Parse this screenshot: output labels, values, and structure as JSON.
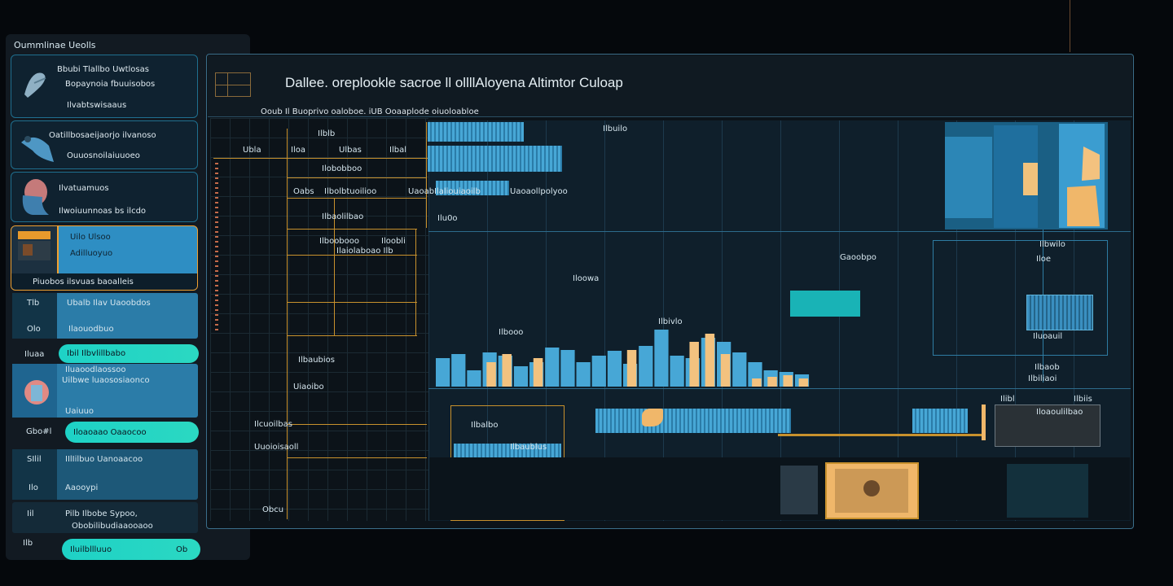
{
  "sidebar": {
    "title": "Oummlinae Ueolls",
    "cards": [
      {
        "line1": "Bbubi Tlallbo Uwtlosas",
        "line2": "Bopaynoia fbuuisobos",
        "line3": "Ilvabtswisaaus"
      },
      {
        "line1": "Oatillbosaeijaorjo ilvanoso",
        "line2": "Ouuosnoilaiuuoeo"
      },
      {
        "line1": "Ilvatuamuos",
        "line2": "Ilwoiuunnoas bs ilcdo"
      },
      {
        "line1": "Uilo Ulsoo",
        "line2": "Adilluoyuo",
        "footer": "Piuobos ilsvuas baoalleis"
      }
    ],
    "rows": [
      {
        "tag": "Tlb",
        "label": "Ubalb Ilav Uaoobdos"
      },
      {
        "tag": "Olo",
        "label": "Ilaouodbuo"
      },
      {
        "tag": "Iluaa",
        "pill": "Ibil Ilbvlillbabo"
      },
      {
        "line1": "Iluaoodlaossoo",
        "line2": "Uilbwe luaososiaonco",
        "line3": "Uaiuuo"
      },
      {
        "tag": "Gbo#l",
        "pill": "Iloaoaao Oaaocoo"
      },
      {
        "tag": "SIlil",
        "label": "IIlIilbuo Uanoaacoo"
      },
      {
        "tag": "Ilo",
        "label": "Aaooypi"
      },
      {
        "tag": "Iil",
        "label": "Pilb Ilbobe Sypoo,",
        "sub": "Obobilibudiaaooaoo"
      },
      {
        "tag": "Ilb",
        "pill": "Iluilbllluuo",
        "pill_end": "Ob"
      }
    ]
  },
  "main": {
    "title": "Dallee. oreplookle sacroe ll ollllAloyena Altimtor Culoap",
    "subtitle": "Ooub Il Buoprivo oaloboe. iUB Ooaaplode oiuoloabloe",
    "labels": {
      "l1": "Ilblb",
      "l2": "Ubla",
      "l3": "Iloa",
      "l4": "Ulbas",
      "l5": "Ilbal",
      "l6": "Ilobobboo",
      "l7": "Oabs",
      "l8": "Ilbolbtuoilioo",
      "l9": "Uaoab",
      "l10": "Ilbaolilbao",
      "l11": "Ilboobooo",
      "l12": "Iloobli",
      "l13": "Ilaiolaboao Ilb",
      "l14": "Ilbaubios",
      "l15": "Uiaoibo",
      "l16": "Ilaliouiaoilb",
      "l17": "Uaoaollpolyoo",
      "l18": "Ilu0o",
      "l19": "Ilbuilo",
      "l20": "Iloowa",
      "l21": "Ilbooo",
      "l22": "Ilbivlo",
      "l23": "Gaoobpo",
      "l24": "Ilbwilo",
      "l25": "Iloe",
      "l26": "Iluoauil",
      "l27": "Ilbaob",
      "l28": "Ilbiliaoi",
      "l29": "Ilibl",
      "l30": "Ilbiis",
      "l31": "Iloaoulilbao",
      "l32": "Ilbalbo",
      "l33": "Ilbaublus",
      "l34": "Ilcuoilbas",
      "l35": "Uuoioisaoll",
      "l36": "Obcu"
    }
  },
  "colors": {
    "accent_teal": "#1ed2c6",
    "accent_orange": "#f0a030",
    "panel_blue": "#2e8ec3",
    "grid_gold": "#c8912d"
  },
  "chart_data": {
    "type": "bar",
    "series": [
      {
        "color": "#47a7d6",
        "values": [
          35,
          40,
          20,
          42,
          38,
          25,
          30,
          48,
          45,
          30,
          38,
          44,
          28,
          50,
          70,
          38,
          35,
          60,
          55,
          42,
          30,
          20,
          18,
          15
        ]
      },
      {
        "color": "#f3c27f",
        "values": [
          0,
          0,
          0,
          30,
          40,
          0,
          35,
          0,
          0,
          0,
          0,
          0,
          45,
          0,
          0,
          0,
          55,
          65,
          40,
          0,
          10,
          12,
          14,
          10
        ]
      }
    ]
  }
}
